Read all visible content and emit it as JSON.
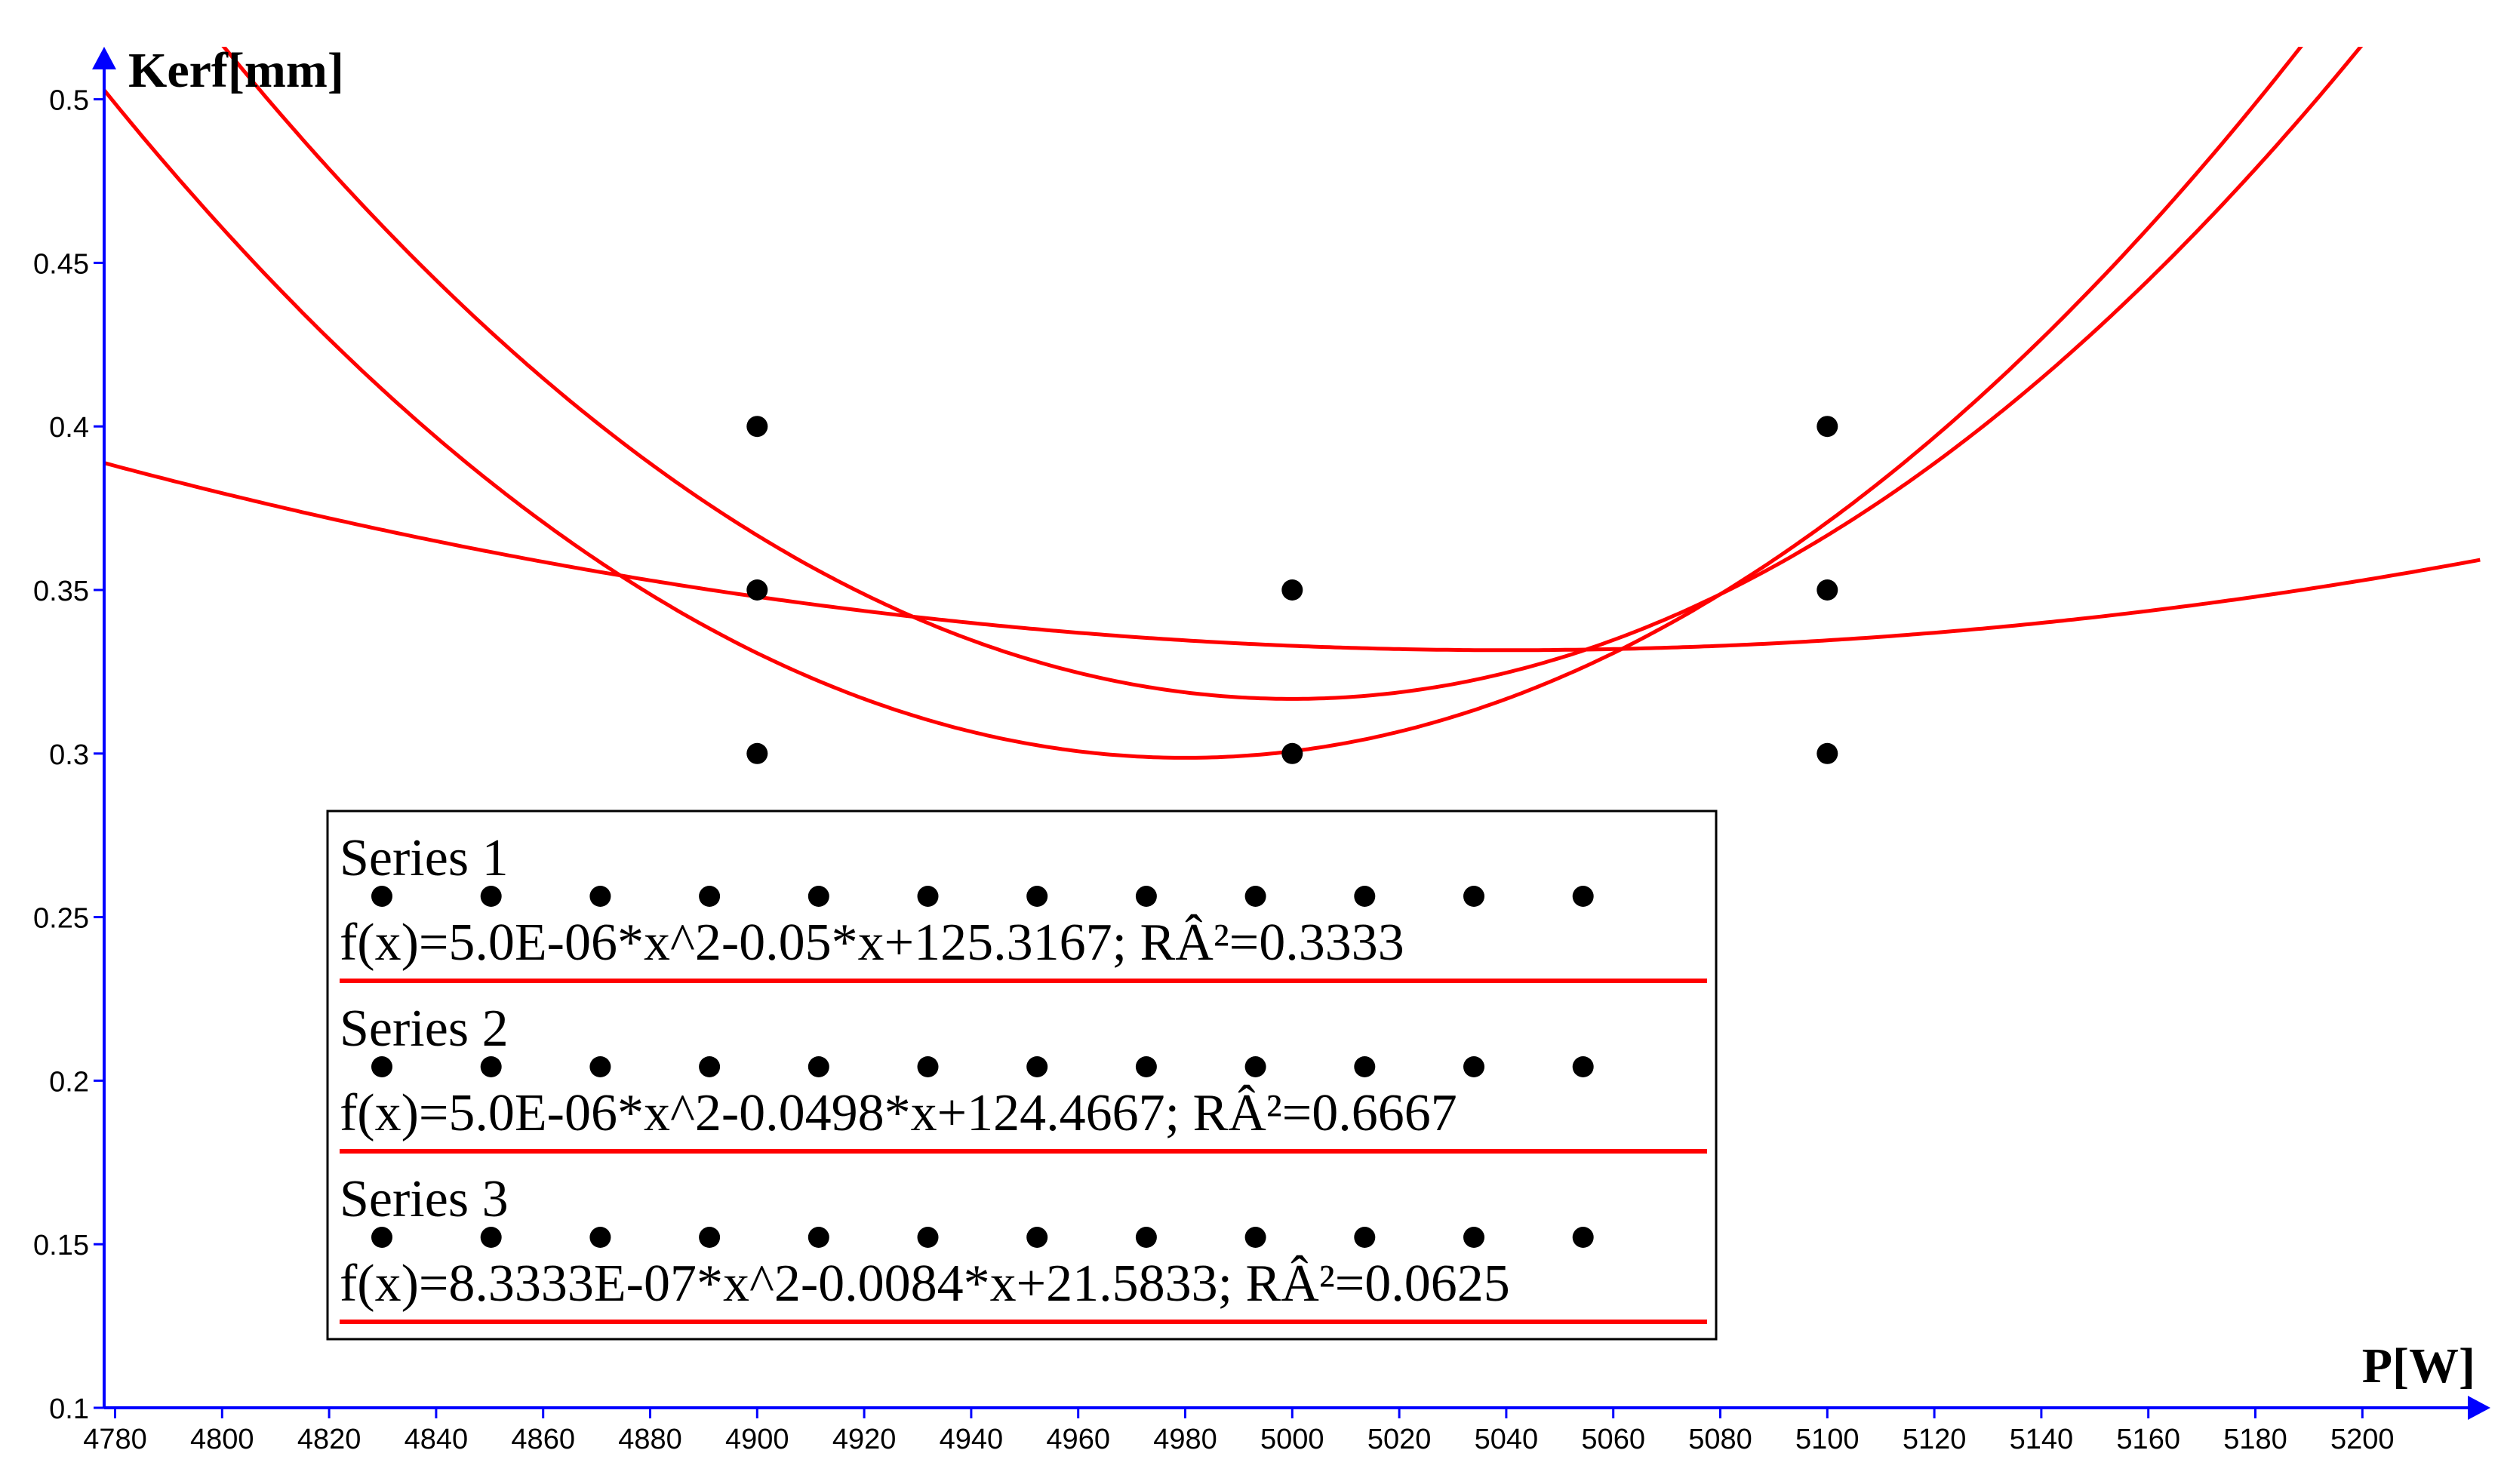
{
  "chart_data": {
    "type": "scatter",
    "xlabel": "P[W]",
    "ylabel": "Kerf[mm]",
    "xlim": [
      4778,
      5222
    ],
    "ylim": [
      0.1,
      0.51
    ],
    "x_ticks": [
      4780,
      4800,
      4820,
      4840,
      4860,
      4880,
      4900,
      4920,
      4940,
      4960,
      4980,
      5000,
      5020,
      5040,
      5060,
      5080,
      5100,
      5120,
      5140,
      5160,
      5180,
      5200
    ],
    "y_ticks": [
      0.1,
      0.15,
      0.2,
      0.25,
      0.3,
      0.35,
      0.4,
      0.45,
      0.5
    ],
    "x_tick_labels": [
      "4780",
      "4800",
      "4820",
      "4840",
      "4860",
      "4880",
      "4900",
      "4920",
      "4940",
      "4960",
      "4980",
      "5000",
      "5020",
      "5040",
      "5060",
      "5080",
      "5100",
      "5120",
      "5140",
      "5160",
      "5180",
      "5200"
    ],
    "y_tick_labels": [
      "0.1",
      "0.15",
      "0.2",
      "0.25",
      "0.3",
      "0.35",
      "0.4",
      "0.45",
      "0.5"
    ],
    "points": [
      {
        "x": 4900,
        "y": 0.4
      },
      {
        "x": 4900,
        "y": 0.35
      },
      {
        "x": 4900,
        "y": 0.3
      },
      {
        "x": 5000,
        "y": 0.35
      },
      {
        "x": 5000,
        "y": 0.3
      },
      {
        "x": 5100,
        "y": 0.4
      },
      {
        "x": 5100,
        "y": 0.35
      },
      {
        "x": 5100,
        "y": 0.3
      }
    ],
    "series": [
      {
        "name": "Series 1",
        "fit": "f(x)=5.0E-06*x^2-0.05*x+125.3167; RÂ²=0.3333",
        "a": 5e-06,
        "vertex_x": 5000,
        "vertex_y": 0.3167
      },
      {
        "name": "Series 2",
        "fit": "f(x)=5.0E-06*x^2-0.0498*x+124.4667; RÂ²=0.6667",
        "a": 5e-06,
        "vertex_x": 4980,
        "vertex_y": 0.2987
      },
      {
        "name": "Series 3",
        "fit": "f(x)=8.3333E-07*x^2-0.0084*x+21.5833; RÂ²=0.0625",
        "a": 8.3333e-07,
        "vertex_x": 5040,
        "vertex_y": 0.3316
      }
    ],
    "legend_placement": "bottom-left",
    "grid": false,
    "colors": {
      "axis": "#0000ff",
      "curve": "#ff0000",
      "point": "#000000",
      "text": "#000000"
    }
  }
}
